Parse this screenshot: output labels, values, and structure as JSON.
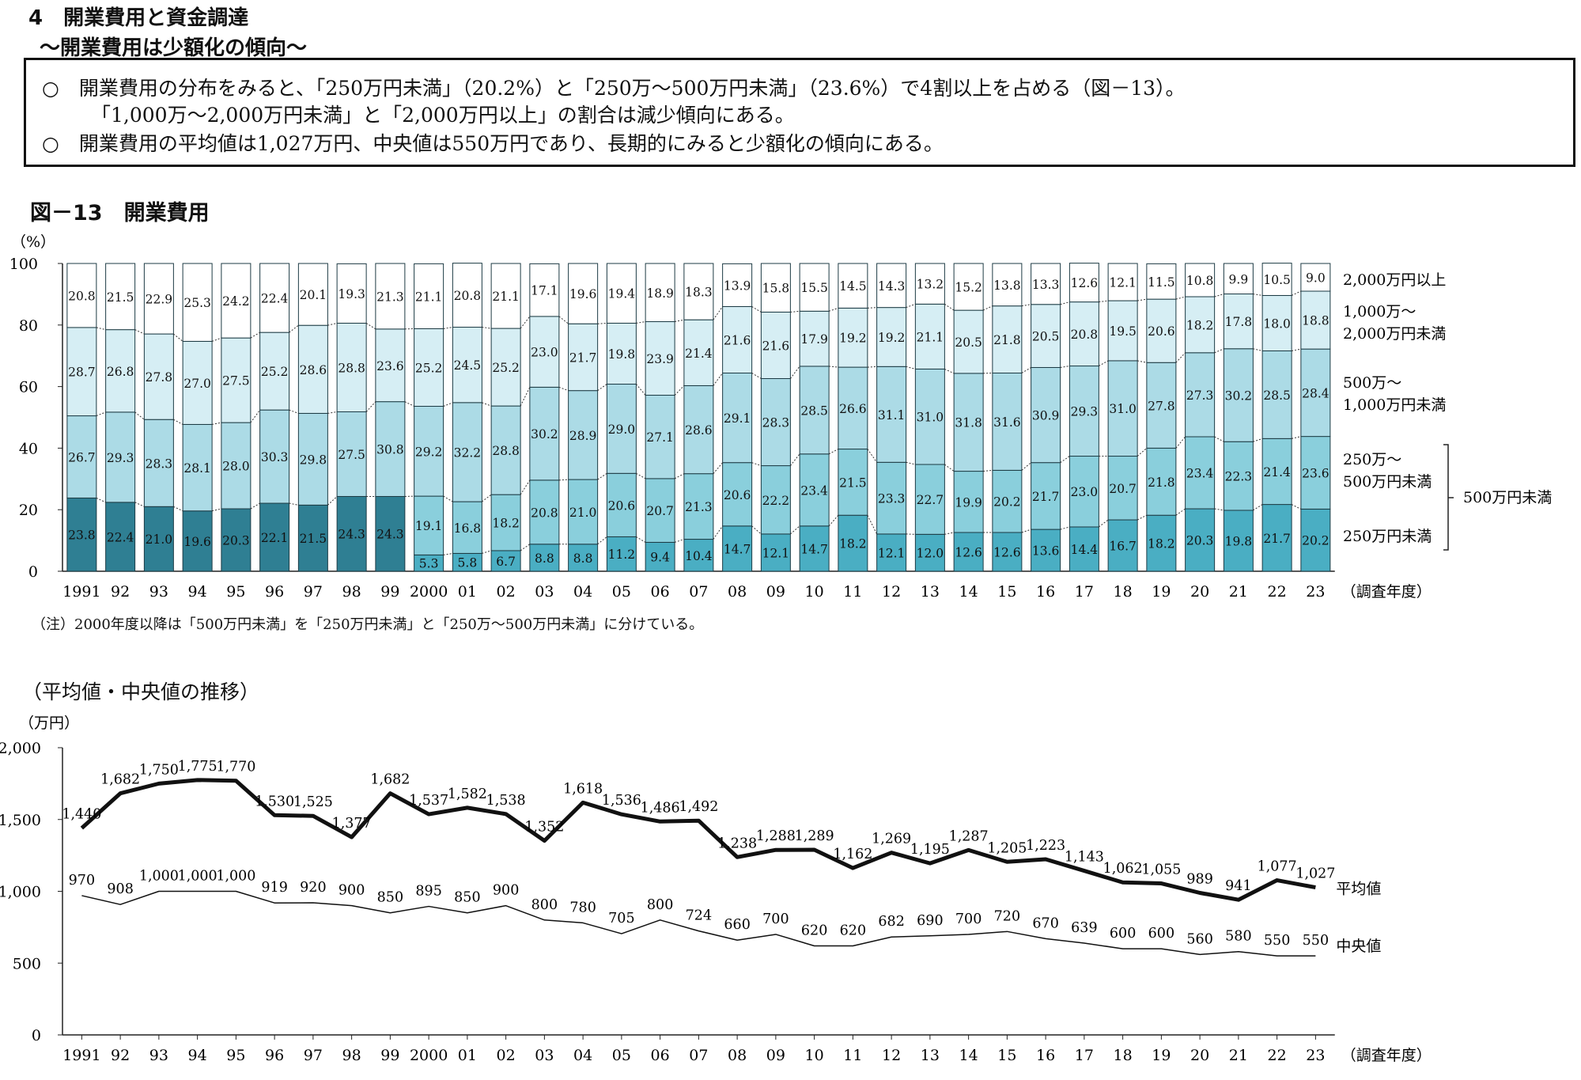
{
  "header": {
    "title": "4　開業費用と資金調達",
    "subtitle": "～開業費用は少額化の傾向～"
  },
  "summary": {
    "line1": "○　開業費用の分布をみると、「250万円未満」（20.2%）と「250万～500万円未満」（23.6%）で4割以上を占める（図－13）。",
    "line2": "「1,000万～2,000万円未満」と「2,000万円以上」の割合は減少傾向にある。",
    "line3": "○　開業費用の平均値は1,027万円、中央値は550万円であり、長期的にみると少額化の傾向にある。"
  },
  "figure": {
    "title": "図－13　開業費用",
    "note": "（注）2000年度以降は「500万円未満」を「250万円未満」と「250万～500万円未満」に分けている。",
    "line_title": "（平均値・中央値の推移）"
  },
  "chart_data": [
    {
      "type": "bar",
      "stacked": true,
      "ylabel": "（%）",
      "xlabel": "（調査年度）",
      "ylim": [
        0,
        100
      ],
      "yticks": [
        0,
        20,
        40,
        60,
        80,
        100
      ],
      "categories": [
        "1991",
        "92",
        "93",
        "94",
        "95",
        "96",
        "97",
        "98",
        "99",
        "2000",
        "01",
        "02",
        "03",
        "04",
        "05",
        "06",
        "07",
        "08",
        "09",
        "10",
        "11",
        "12",
        "13",
        "14",
        "15",
        "16",
        "17",
        "18",
        "19",
        "20",
        "21",
        "22",
        "23"
      ],
      "series": [
        {
          "name": "250万円未満",
          "color": "#4aaec3",
          "values": [
            null,
            null,
            null,
            null,
            null,
            null,
            null,
            null,
            null,
            5.3,
            5.8,
            6.7,
            8.8,
            8.8,
            11.2,
            9.4,
            10.4,
            14.7,
            12.1,
            14.7,
            18.2,
            12.1,
            12.0,
            12.6,
            12.6,
            13.6,
            14.4,
            16.7,
            18.2,
            20.3,
            19.8,
            21.7,
            20.2
          ]
        },
        {
          "name": "250万～500万円未満",
          "color": "#8acfdc",
          "values": [
            null,
            null,
            null,
            null,
            null,
            null,
            null,
            null,
            null,
            19.1,
            16.8,
            18.2,
            20.8,
            21.0,
            20.6,
            20.7,
            21.3,
            20.6,
            22.2,
            23.4,
            21.5,
            23.3,
            22.7,
            19.9,
            20.2,
            21.7,
            23.0,
            20.7,
            21.8,
            23.4,
            22.3,
            21.4,
            23.6
          ]
        },
        {
          "name": "500万円未満",
          "color": "#2f7f93",
          "values": [
            23.8,
            22.4,
            21.0,
            19.6,
            20.3,
            22.1,
            21.5,
            24.3,
            24.3,
            null,
            null,
            null,
            null,
            null,
            null,
            null,
            null,
            null,
            null,
            null,
            null,
            null,
            null,
            null,
            null,
            null,
            null,
            null,
            null,
            null,
            null,
            null,
            null
          ]
        },
        {
          "name": "500万～1,000万円未満",
          "color": "#acdbe6",
          "values": [
            26.7,
            29.3,
            28.3,
            28.1,
            28.0,
            30.3,
            29.8,
            27.5,
            30.8,
            29.2,
            32.2,
            28.8,
            30.2,
            28.9,
            29.0,
            27.1,
            28.6,
            29.1,
            28.3,
            28.5,
            26.6,
            31.1,
            31.0,
            31.8,
            31.6,
            30.9,
            29.3,
            31.0,
            27.8,
            27.3,
            30.2,
            28.5,
            28.4
          ]
        },
        {
          "name": "1,000万～2,000万円未満",
          "color": "#d6eef4",
          "values": [
            28.7,
            26.8,
            27.8,
            27.0,
            27.5,
            25.2,
            28.6,
            28.8,
            23.6,
            25.2,
            24.5,
            25.2,
            23.0,
            21.7,
            19.8,
            23.9,
            21.4,
            21.6,
            21.6,
            17.9,
            19.2,
            19.2,
            21.1,
            20.5,
            21.8,
            20.5,
            20.8,
            19.5,
            20.6,
            18.2,
            17.8,
            18.0,
            18.8
          ]
        },
        {
          "name": "2,000万円以上",
          "color": "#ffffff",
          "values": [
            20.8,
            21.5,
            22.9,
            25.3,
            24.2,
            22.4,
            20.1,
            19.3,
            21.3,
            21.1,
            20.8,
            21.1,
            17.1,
            19.6,
            19.4,
            18.9,
            18.3,
            13.9,
            15.8,
            15.5,
            14.5,
            14.3,
            13.2,
            15.2,
            13.8,
            13.3,
            12.6,
            12.1,
            11.5,
            10.8,
            9.9,
            10.5,
            9.0
          ]
        }
      ],
      "legend": {
        "s6": "2,000万円以上",
        "s5a": "1,000万～",
        "s5b": "2,000万円未満",
        "s4a": "500万～",
        "s4b": "1,000万円未満",
        "s2a": "250万～",
        "s2b": "500万円未満",
        "s1": "250万円未満",
        "group": "500万円未満"
      }
    },
    {
      "type": "line",
      "ylabel": "（万円）",
      "xlabel": "（調査年度）",
      "ylim": [
        0,
        2000
      ],
      "yticks": [
        0,
        500,
        1000,
        1500,
        2000
      ],
      "ytick_labels": [
        "0",
        "500",
        "1,000",
        "1,500",
        "2,000"
      ],
      "categories": [
        "1991",
        "92",
        "93",
        "94",
        "95",
        "96",
        "97",
        "98",
        "99",
        "2000",
        "01",
        "02",
        "03",
        "04",
        "05",
        "06",
        "07",
        "08",
        "09",
        "10",
        "11",
        "12",
        "13",
        "14",
        "15",
        "16",
        "17",
        "18",
        "19",
        "20",
        "21",
        "22",
        "23"
      ],
      "series": [
        {
          "name": "平均値",
          "values": [
            1440,
            1682,
            1750,
            1775,
            1770,
            1530,
            1525,
            1377,
            1682,
            1537,
            1582,
            1538,
            1352,
            1618,
            1536,
            1486,
            1492,
            1238,
            1288,
            1289,
            1162,
            1269,
            1195,
            1287,
            1205,
            1223,
            1143,
            1062,
            1055,
            989,
            941,
            1077,
            1027
          ]
        },
        {
          "name": "中央値",
          "values": [
            970,
            908,
            1000,
            1000,
            1000,
            919,
            920,
            900,
            850,
            895,
            850,
            900,
            800,
            780,
            705,
            800,
            724,
            660,
            700,
            620,
            620,
            682,
            690,
            700,
            720,
            670,
            639,
            600,
            600,
            560,
            580,
            550,
            550
          ]
        }
      ]
    }
  ]
}
